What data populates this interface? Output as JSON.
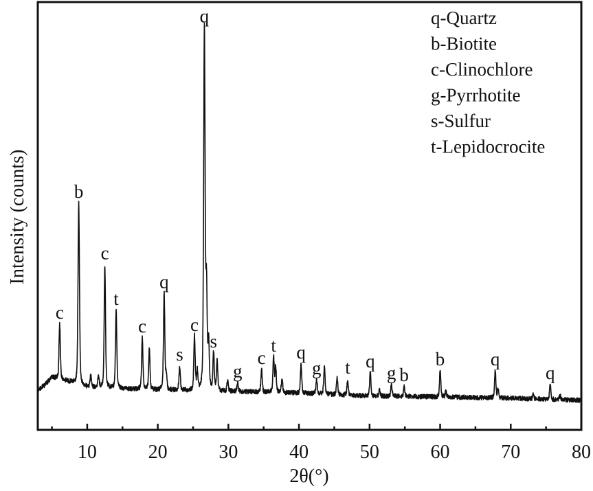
{
  "chart_data": {
    "type": "line",
    "xlabel": "2θ(°)",
    "ylabel": "Intensity (counts)",
    "xlim": [
      3,
      80
    ],
    "ylim": [
      0,
      100
    ],
    "x_ticks": [
      10,
      20,
      30,
      40,
      50,
      60,
      70,
      80
    ],
    "x_minor_ticks": [
      5,
      15,
      25,
      35,
      45,
      55,
      65,
      75
    ],
    "grid": false,
    "line_color": "#111111",
    "background": [
      [
        3,
        9.3
      ],
      [
        4,
        10.5
      ],
      [
        5,
        12.3
      ],
      [
        7,
        11.5
      ],
      [
        10,
        10.0
      ],
      [
        20,
        9.3
      ],
      [
        30,
        9.0
      ],
      [
        40,
        8.6
      ],
      [
        50,
        7.9
      ],
      [
        60,
        7.7
      ],
      [
        70,
        7.4
      ],
      [
        80,
        6.9
      ]
    ],
    "peaks": [
      {
        "x": 6.1,
        "y": 24.7,
        "label": "c"
      },
      {
        "x": 8.8,
        "y": 53.0,
        "label": "b"
      },
      {
        "x": 10.5,
        "y": 12.5,
        "label": ""
      },
      {
        "x": 11.6,
        "y": 12.8,
        "label": ""
      },
      {
        "x": 12.5,
        "y": 38.6,
        "label": "c"
      },
      {
        "x": 14.1,
        "y": 27.9,
        "label": "t"
      },
      {
        "x": 17.8,
        "y": 21.5,
        "label": "c"
      },
      {
        "x": 18.8,
        "y": 19.0,
        "label": ""
      },
      {
        "x": 20.9,
        "y": 31.9,
        "label": "q"
      },
      {
        "x": 21.2,
        "y": 12.5,
        "label": ""
      },
      {
        "x": 23.1,
        "y": 14.9,
        "label": "s"
      },
      {
        "x": 25.2,
        "y": 21.8,
        "label": "c"
      },
      {
        "x": 25.6,
        "y": 13.5,
        "label": ""
      },
      {
        "x": 26.6,
        "y": 94.0,
        "label": "q"
      },
      {
        "x": 26.9,
        "y": 32.0,
        "label": ""
      },
      {
        "x": 27.2,
        "y": 20.0,
        "label": ""
      },
      {
        "x": 27.9,
        "y": 18.0,
        "label": "s"
      },
      {
        "x": 28.4,
        "y": 16.0,
        "label": ""
      },
      {
        "x": 29.9,
        "y": 11.5,
        "label": ""
      },
      {
        "x": 31.3,
        "y": 11.0,
        "label": "g"
      },
      {
        "x": 34.7,
        "y": 14.1,
        "label": "c"
      },
      {
        "x": 36.4,
        "y": 17.0,
        "label": "t"
      },
      {
        "x": 36.7,
        "y": 14.5,
        "label": ""
      },
      {
        "x": 37.6,
        "y": 12.0,
        "label": ""
      },
      {
        "x": 40.3,
        "y": 15.4,
        "label": "q"
      },
      {
        "x": 42.5,
        "y": 11.7,
        "label": "g"
      },
      {
        "x": 43.6,
        "y": 14.6,
        "label": ""
      },
      {
        "x": 45.4,
        "y": 12.2,
        "label": ""
      },
      {
        "x": 46.9,
        "y": 11.9,
        "label": "t"
      },
      {
        "x": 50.1,
        "y": 13.3,
        "label": "q"
      },
      {
        "x": 51.4,
        "y": 9.3,
        "label": ""
      },
      {
        "x": 53.1,
        "y": 10.6,
        "label": "g"
      },
      {
        "x": 54.9,
        "y": 10.1,
        "label": "b"
      },
      {
        "x": 60.0,
        "y": 13.8,
        "label": "b"
      },
      {
        "x": 60.8,
        "y": 9.0,
        "label": ""
      },
      {
        "x": 67.8,
        "y": 13.8,
        "label": "q"
      },
      {
        "x": 68.2,
        "y": 9.5,
        "label": ""
      },
      {
        "x": 73.2,
        "y": 8.3,
        "label": ""
      },
      {
        "x": 75.6,
        "y": 10.6,
        "label": "q"
      },
      {
        "x": 77.0,
        "y": 8.0,
        "label": ""
      }
    ],
    "legend": {
      "placement": "top-right",
      "entries": [
        "q-Quartz",
        "b-Biotite",
        "c-Clinochlore",
        "g-Pyrrhotite",
        "s-Sulfur",
        "t-Lepidocrocite"
      ]
    }
  }
}
